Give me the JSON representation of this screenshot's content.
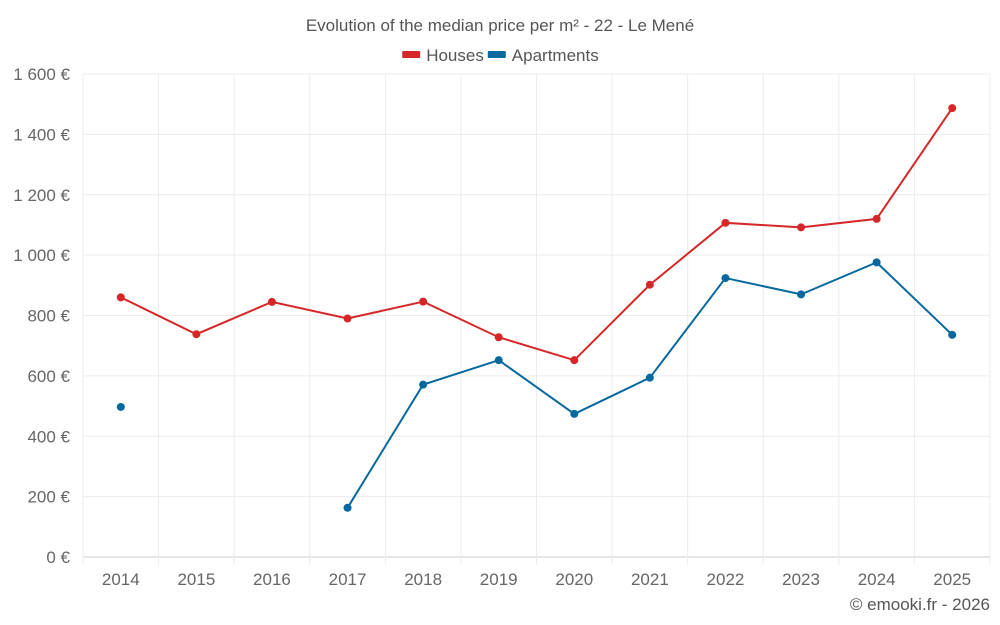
{
  "chart_data": {
    "type": "line",
    "title": "Evolution of the median price per m² - 22 - Le Mené",
    "categories": [
      "2014",
      "2015",
      "2016",
      "2017",
      "2018",
      "2019",
      "2020",
      "2021",
      "2022",
      "2023",
      "2024",
      "2025"
    ],
    "series": [
      {
        "name": "Houses",
        "color": "#d62728",
        "values": [
          860,
          738,
          845,
          790,
          846,
          728,
          652,
          902,
          1107,
          1092,
          1120,
          1487
        ]
      },
      {
        "name": "Apartments",
        "color": "#05689f",
        "values": [
          497,
          null,
          null,
          163,
          571,
          652,
          474,
          594,
          924,
          870,
          976,
          736
        ]
      }
    ],
    "ylim": [
      0,
      1600
    ],
    "yticks": [
      0,
      200,
      400,
      600,
      800,
      1000,
      1200,
      1400,
      1600
    ],
    "ytick_labels": [
      "0 €",
      "200 €",
      "400 €",
      "600 €",
      "800 €",
      "1 000 €",
      "1 200 €",
      "1 400 €",
      "1 600 €"
    ],
    "legend_position": "top-center",
    "grid": true,
    "xlabel": "",
    "ylabel": ""
  },
  "credit": "© emooki.fr - 2026"
}
